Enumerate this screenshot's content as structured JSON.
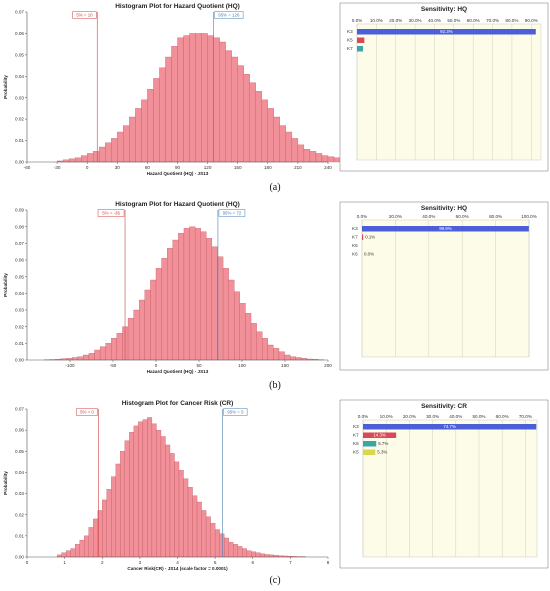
{
  "chart_data": [
    {
      "type": "bar",
      "subtype": "histogram",
      "caption": "(a)",
      "title": "Histogram Plot for Hazard Quotient (HQ)",
      "xlabel": "Hazard Quotient (HQ) - JS13",
      "ylabel": "Probability",
      "xlim": [
        -60,
        240
      ],
      "ylim": [
        0,
        0.07
      ],
      "xticks": [
        -60,
        -30,
        0,
        30,
        60,
        90,
        120,
        150,
        180,
        210,
        240
      ],
      "yticks": [
        0,
        0.01,
        0.02,
        0.03,
        0.04,
        0.05,
        0.06,
        0.07
      ],
      "bin_width": 6,
      "bins_start": -30,
      "values": [
        0.0005,
        0.001,
        0.0015,
        0.002,
        0.003,
        0.004,
        0.005,
        0.007,
        0.009,
        0.011,
        0.014,
        0.017,
        0.021,
        0.025,
        0.029,
        0.034,
        0.039,
        0.044,
        0.049,
        0.054,
        0.058,
        0.059,
        0.06,
        0.06,
        0.06,
        0.059,
        0.058,
        0.056,
        0.052,
        0.049,
        0.045,
        0.041,
        0.037,
        0.033,
        0.029,
        0.025,
        0.021,
        0.017,
        0.014,
        0.011,
        0.008,
        0.006,
        0.005,
        0.004,
        0.003,
        0.0025,
        0.002,
        0.0015,
        0.001,
        0.0008,
        0.0006,
        0.0004,
        0.0003,
        0.0002
      ],
      "markers": [
        {
          "label": "5% = 10",
          "x": 10,
          "color": "#d04040"
        },
        {
          "label": "95% = 126",
          "x": 126,
          "color": "#4a7fb0"
        }
      ]
    },
    {
      "type": "bar",
      "subtype": "sensitivity",
      "caption": "(a)",
      "title": "Sensitivity: HQ",
      "xticks": [
        "0.0%",
        "10.0%",
        "20.0%",
        "30.0%",
        "40.0%",
        "50.0%",
        "60.0%",
        "70.0%",
        "80.0%",
        "90.0%"
      ],
      "xmax": 95,
      "categories": [
        "K3",
        "K5",
        "K7"
      ],
      "values": [
        92.3,
        3.8,
        3.1
      ],
      "value_labels": [
        "92.3%",
        "",
        ""
      ],
      "colors": [
        "#4a5fd8",
        "#d84a5a",
        "#3aa6a6"
      ]
    },
    {
      "type": "bar",
      "subtype": "histogram",
      "caption": "(b)",
      "title": "Histogram Plot for Hazard Quotient (HQ)",
      "xlabel": "Hazard Quotient (HQ) - JS13",
      "ylabel": "Probability",
      "xlim": [
        -150,
        200
      ],
      "ylim": [
        0,
        0.09
      ],
      "xticks": [
        -100,
        -50,
        0,
        50,
        100,
        150,
        200
      ],
      "yticks": [
        0,
        0.01,
        0.02,
        0.03,
        0.04,
        0.05,
        0.06,
        0.07,
        0.08,
        0.09
      ],
      "bin_width": 6.5,
      "bins_start": -130,
      "values": [
        0.0002,
        0.0003,
        0.0005,
        0.0008,
        0.001,
        0.0015,
        0.002,
        0.003,
        0.004,
        0.006,
        0.008,
        0.01,
        0.013,
        0.016,
        0.02,
        0.025,
        0.03,
        0.036,
        0.042,
        0.048,
        0.055,
        0.061,
        0.067,
        0.072,
        0.076,
        0.079,
        0.08,
        0.079,
        0.077,
        0.073,
        0.068,
        0.062,
        0.055,
        0.048,
        0.041,
        0.034,
        0.028,
        0.022,
        0.017,
        0.013,
        0.009,
        0.007,
        0.005,
        0.003,
        0.002,
        0.0015,
        0.001,
        0.0006,
        0.0004,
        0.0002
      ],
      "markers": [
        {
          "label": "5% = -36",
          "x": -36,
          "color": "#d04040"
        },
        {
          "label": "95% = 72",
          "x": 72,
          "color": "#4a7fb0"
        }
      ]
    },
    {
      "type": "bar",
      "subtype": "sensitivity",
      "caption": "(b)",
      "title": "Sensitivity: HQ",
      "xticks": [
        "0.0%",
        "20.0%",
        "40.0%",
        "60.0%",
        "80.0%",
        "100.0%"
      ],
      "xmax": 100,
      "categories": [
        "K3",
        "K7",
        "K5",
        "K6"
      ],
      "values": [
        99.9,
        0.1,
        0,
        0
      ],
      "value_labels": [
        "99.9%",
        "0.1%",
        "",
        "0.0%"
      ],
      "colors": [
        "#4a5fd8",
        "#d84a5a",
        "#3aa6a6",
        "#d8d84a"
      ]
    },
    {
      "type": "bar",
      "subtype": "histogram",
      "caption": "(c)",
      "title": "Histogram Plot for Cancer Risk (CR)",
      "xlabel": "Cancer Risk(CR) - JS14 (scale factor = 0.0001)",
      "ylabel": "Probability",
      "xlim": [
        0,
        8
      ],
      "ylim": [
        0,
        0.07
      ],
      "xticks": [
        0,
        1,
        2,
        3,
        4,
        5,
        6,
        7,
        8
      ],
      "yticks": [
        0,
        0.01,
        0.02,
        0.03,
        0.04,
        0.05,
        0.06,
        0.07
      ],
      "bin_width": 0.12,
      "bins_start": 0.8,
      "values": [
        0.001,
        0.002,
        0.003,
        0.004,
        0.006,
        0.008,
        0.01,
        0.014,
        0.018,
        0.022,
        0.027,
        0.032,
        0.038,
        0.044,
        0.05,
        0.055,
        0.059,
        0.062,
        0.064,
        0.065,
        0.066,
        0.063,
        0.06,
        0.057,
        0.053,
        0.049,
        0.045,
        0.041,
        0.037,
        0.033,
        0.029,
        0.026,
        0.022,
        0.019,
        0.016,
        0.013,
        0.011,
        0.009,
        0.007,
        0.006,
        0.005,
        0.004,
        0.003,
        0.0025,
        0.002,
        0.0015,
        0.0012,
        0.001,
        0.0008,
        0.0006,
        0.0005,
        0.0004,
        0.0003,
        0.0002,
        0.0002
      ],
      "markers": [
        {
          "label": "5% = 0",
          "x": 1.9,
          "color": "#d04040"
        },
        {
          "label": "95% = 5",
          "x": 5.2,
          "color": "#4a7fb0"
        }
      ]
    },
    {
      "type": "bar",
      "subtype": "sensitivity",
      "caption": "(c)",
      "title": "Sensitivity: CR",
      "xticks": [
        "0.0%",
        "10.0%",
        "20.0%",
        "30.0%",
        "40.0%",
        "50.0%",
        "60.0%",
        "70.0%"
      ],
      "xmax": 75,
      "categories": [
        "K3",
        "K7",
        "K6",
        "K5"
      ],
      "values": [
        74.7,
        14.3,
        5.7,
        5.3
      ],
      "value_labels": [
        "74.7%",
        "14.3%",
        "5.7%",
        "5.3%"
      ],
      "colors": [
        "#4a5fd8",
        "#d84a5a",
        "#3aa6a6",
        "#d8d84a"
      ]
    }
  ]
}
